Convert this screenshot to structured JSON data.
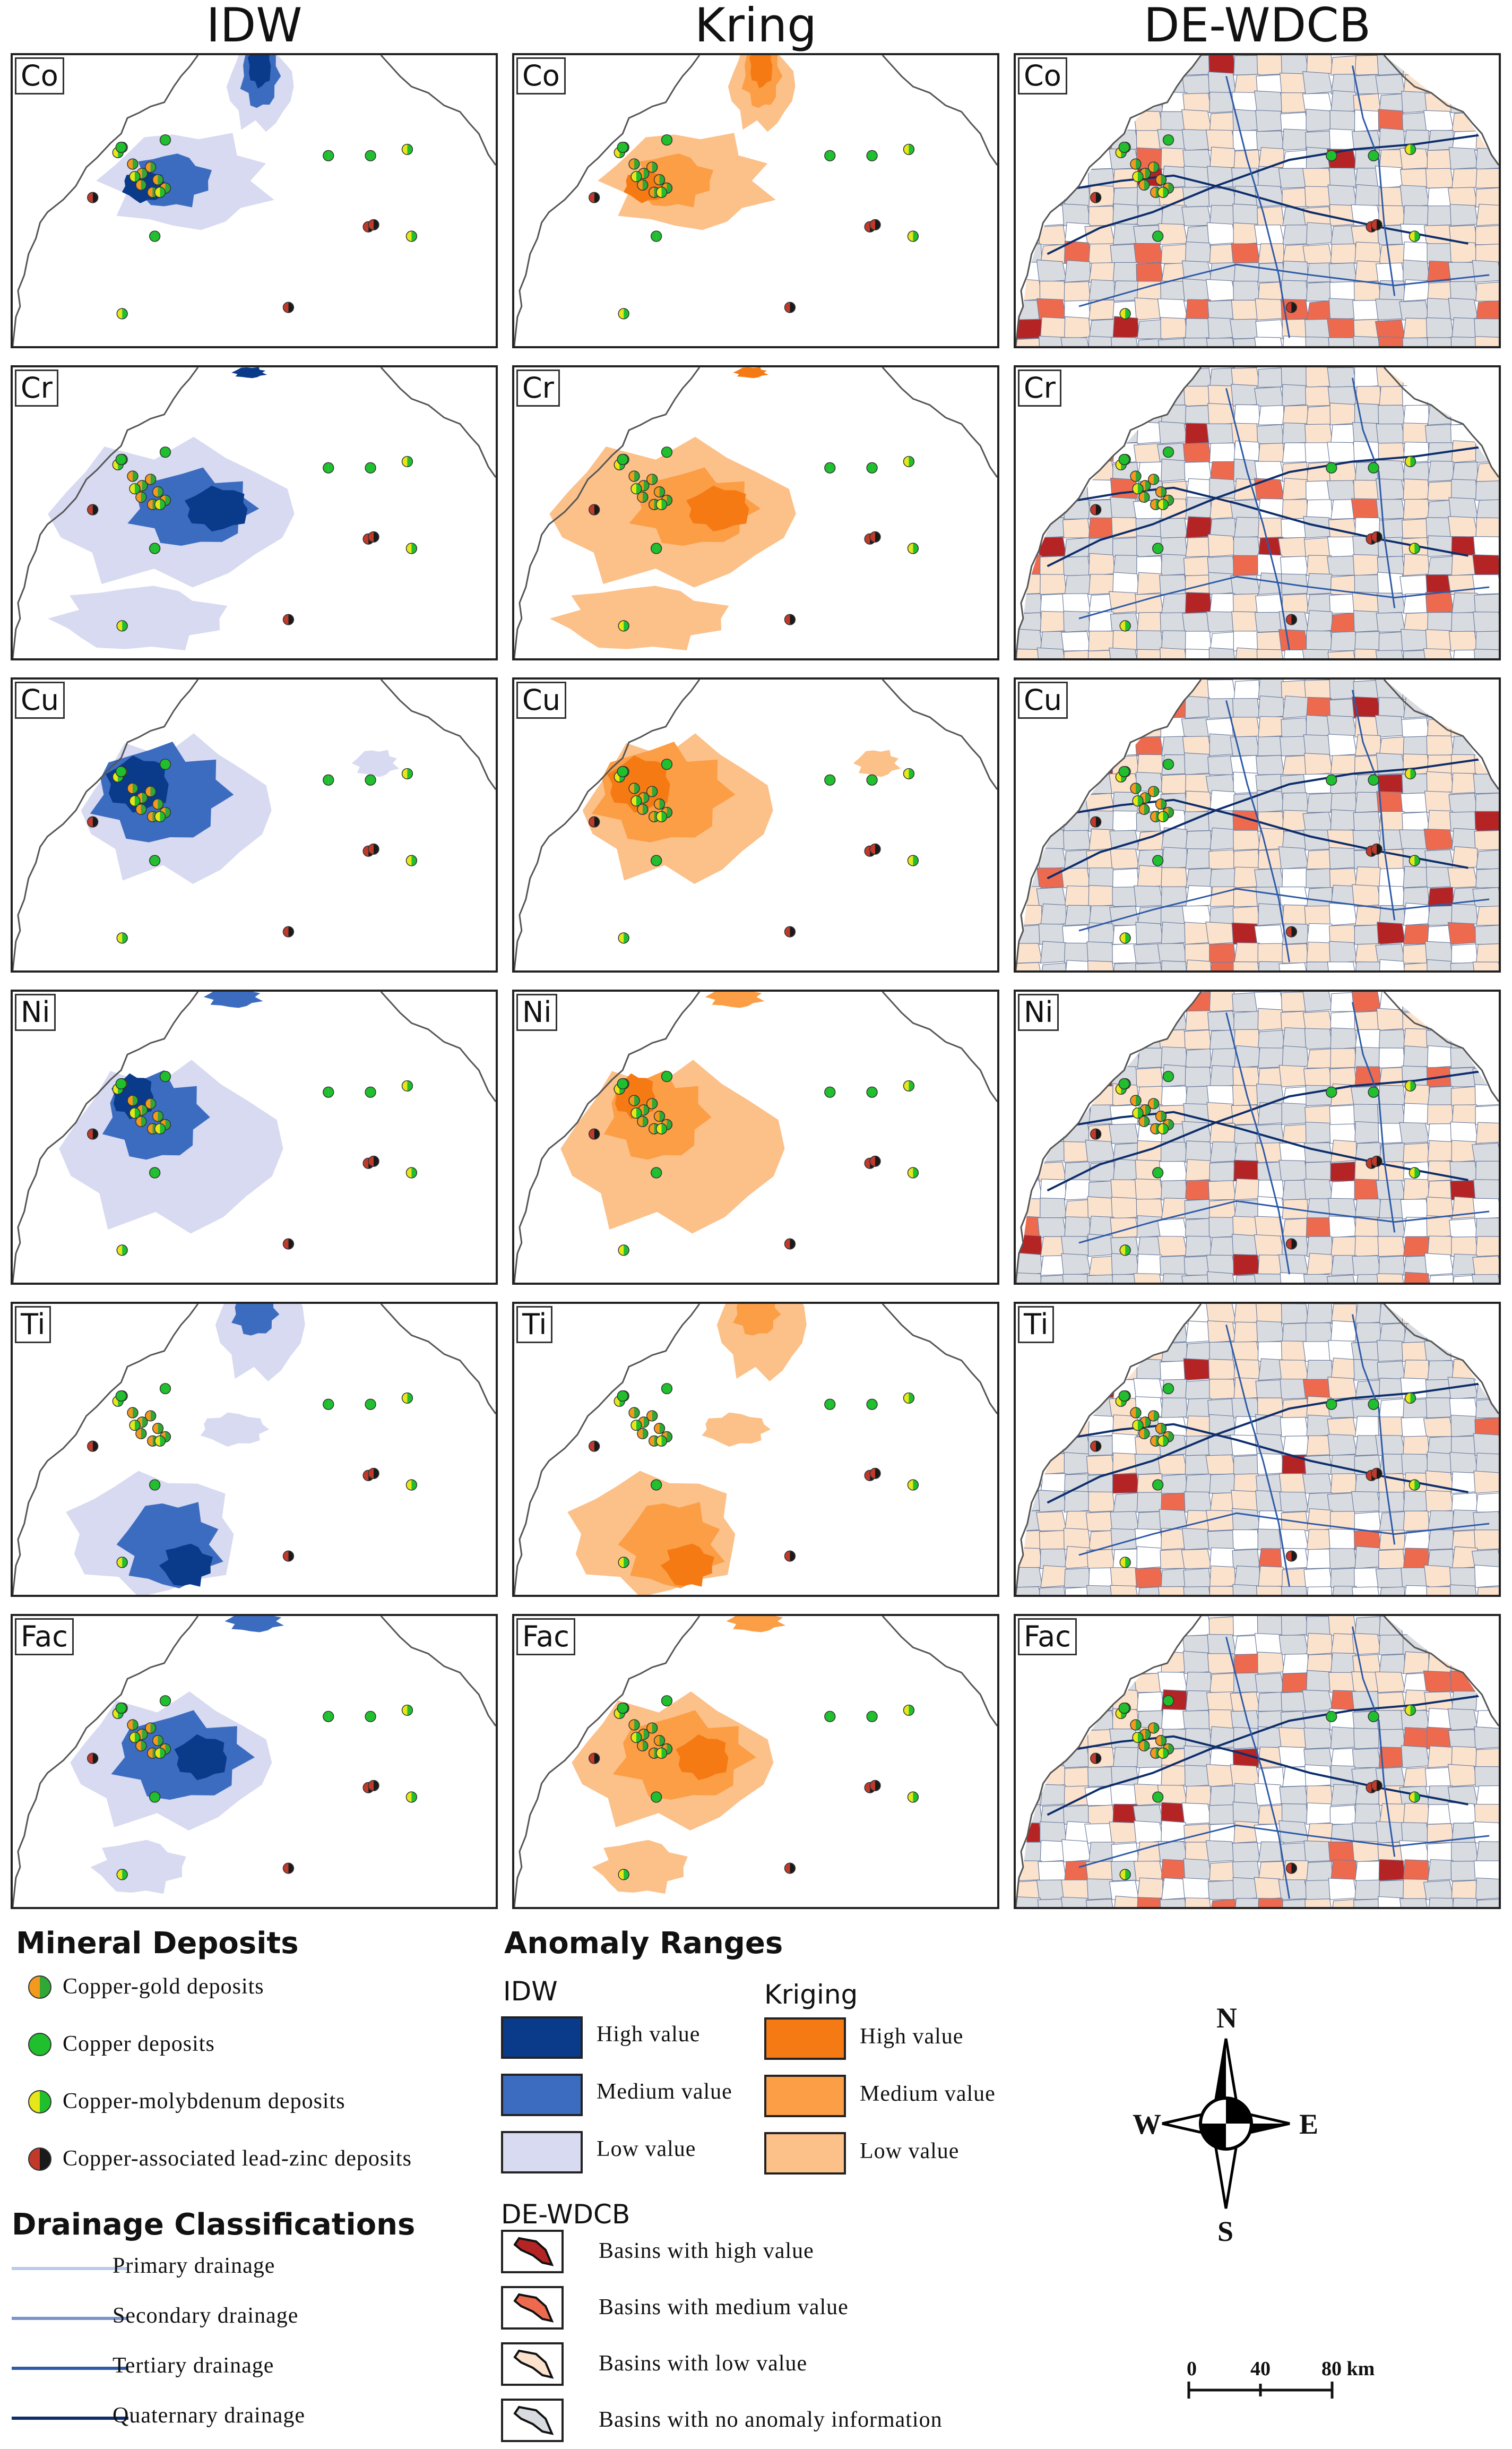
{
  "columns": [
    "IDW",
    "Kring",
    "DE-WDCB"
  ],
  "elements": [
    "Co",
    "Cr",
    "Cu",
    "Ni",
    "Ti",
    "Fac"
  ],
  "legend": {
    "mineral_title": "Mineral Deposits",
    "deposits": [
      {
        "label": "Copper-gold deposits",
        "color_a": "#f39a1e",
        "color_b": "#2fa836"
      },
      {
        "label": "Copper deposits",
        "color_a": "#1fbf2e",
        "color_b": "#1fbf2e"
      },
      {
        "label": "Copper-molybdenum deposits",
        "color_a": "#e6e619",
        "color_b": "#1fbf2e"
      },
      {
        "label": "Copper-associated lead-zinc deposits",
        "color_a": "#c0392b",
        "color_b": "#1a1a1a"
      }
    ],
    "drainage_title": "Drainage Classifications",
    "drainage": [
      {
        "label": "Primary drainage",
        "color": "#b8cbe8"
      },
      {
        "label": "Secondary drainage",
        "color": "#7b95c9"
      },
      {
        "label": "Tertiary drainage",
        "color": "#2e5aa8"
      },
      {
        "label": "Quaternary drainage",
        "color": "#0d2e6b"
      }
    ],
    "anomaly_title": "Anomaly Ranges",
    "idw_title": "IDW",
    "idw": [
      {
        "label": "High value",
        "color": "#0a3a8a"
      },
      {
        "label": "Medium value",
        "color": "#3c6cc0"
      },
      {
        "label": "Low value",
        "color": "#d7daf0"
      }
    ],
    "kriging_title": "Kriging",
    "kriging": [
      {
        "label": "High value",
        "color": "#f57a14"
      },
      {
        "label": "Medium value",
        "color": "#fb9e45"
      },
      {
        "label": "Low value",
        "color": "#fcc089"
      }
    ],
    "dewdcb_title": "DE-WDCB",
    "dewdcb": [
      {
        "label": "Basins with high value",
        "color": "#b52424"
      },
      {
        "label": "Basins with medium value",
        "color": "#ee6a4f"
      },
      {
        "label": "Basins with low value",
        "color": "#fbe2cc"
      },
      {
        "label": "Basins with no anomaly information",
        "color": "#d8dbe0"
      }
    ]
  },
  "compass": {
    "n": "N",
    "s": "S",
    "e": "E",
    "w": "W"
  },
  "scale": {
    "labels": [
      "0",
      "40",
      "80 km"
    ]
  }
}
